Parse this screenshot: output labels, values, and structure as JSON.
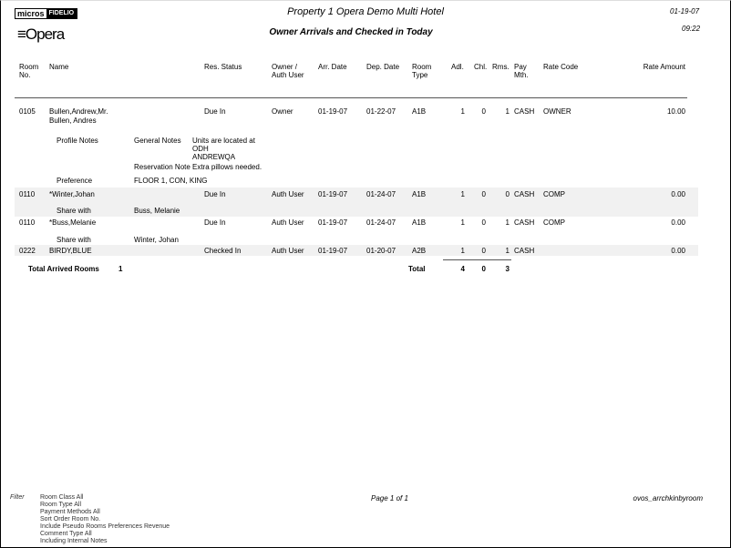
{
  "header": {
    "logo_micros": "micros",
    "logo_fidelio": "FIDELIO",
    "logo_opera": "Opera",
    "property": "Property 1 Opera Demo Multi Hotel",
    "report_title": "Owner Arrivals and Checked in Today",
    "date": "01-19-07",
    "time": "09:22"
  },
  "columns": {
    "room": "Room No.",
    "name": "Name",
    "status": "Res. Status",
    "owner": "Owner / Auth User",
    "arr": "Arr. Date",
    "dep": "Dep. Date",
    "type": "Room Type",
    "adl": "Adl.",
    "chl": "Chl.",
    "rms": "Rms.",
    "pay": "Pay Mth.",
    "rate_code": "Rate Code",
    "rate_amount": "Rate Amount"
  },
  "rows": [
    {
      "room": "0105",
      "name": "Bullen,Andrew,Mr.",
      "name2": "Bullen, Andres",
      "status": "Due In",
      "owner": "Owner",
      "arr": "01-19-07",
      "dep": "01-22-07",
      "type": "A1B",
      "adl": "1",
      "chl": "0",
      "rms": "1",
      "pay": "CASH",
      "rate_code": "OWNER",
      "rate_amount": "10.00",
      "profile_notes_label": "Profile Notes",
      "general_notes_label": "General Notes",
      "general_notes": [
        "Units are located at",
        "ODH",
        "ANDREWQA"
      ],
      "reservation_note_label": "Reservation Note",
      "reservation_note": "Extra pillows needed.",
      "preference_label": "Preference",
      "preference": "FLOOR 1, CON, KING"
    },
    {
      "room": "0110",
      "name": "*Winter,Johan",
      "status": "Due In",
      "owner": "Auth User",
      "arr": "01-19-07",
      "dep": "01-24-07",
      "type": "A1B",
      "adl": "1",
      "chl": "0",
      "rms": "0",
      "pay": "CASH",
      "rate_code": "COMP",
      "rate_amount": "0.00",
      "share_label": "Share with",
      "share": "Buss, Melanie"
    },
    {
      "room": "0110",
      "name": "*Buss,Melanie",
      "status": "Due In",
      "owner": "Auth User",
      "arr": "01-19-07",
      "dep": "01-24-07",
      "type": "A1B",
      "adl": "1",
      "chl": "0",
      "rms": "1",
      "pay": "CASH",
      "rate_code": "COMP",
      "rate_amount": "0.00",
      "share_label": "Share with",
      "share": "Winter, Johan"
    },
    {
      "room": "0222",
      "name": "BIRDY,BLUE",
      "status": "Checked In",
      "owner": "Auth User",
      "arr": "01-19-07",
      "dep": "01-20-07",
      "type": "A2B",
      "adl": "1",
      "chl": "0",
      "rms": "1",
      "pay": "CASH",
      "rate_code": "",
      "rate_amount": "0.00"
    }
  ],
  "totals": {
    "arrived_label": "Total Arrived Rooms",
    "arrived": "1",
    "total_label": "Total",
    "adl": "4",
    "chl": "0",
    "rms": "3"
  },
  "footer": {
    "filter_label": "Filter",
    "filters": [
      "Room Class All",
      "Room Type All",
      "Payment Methods All",
      "Sort Order Room No.",
      "Include Pseudo Rooms Preferences Revenue",
      "Comment Type All",
      "Including Internal Notes"
    ],
    "page": "Page 1 of 1",
    "report_id": "ovos_arrchkinbyroom"
  }
}
